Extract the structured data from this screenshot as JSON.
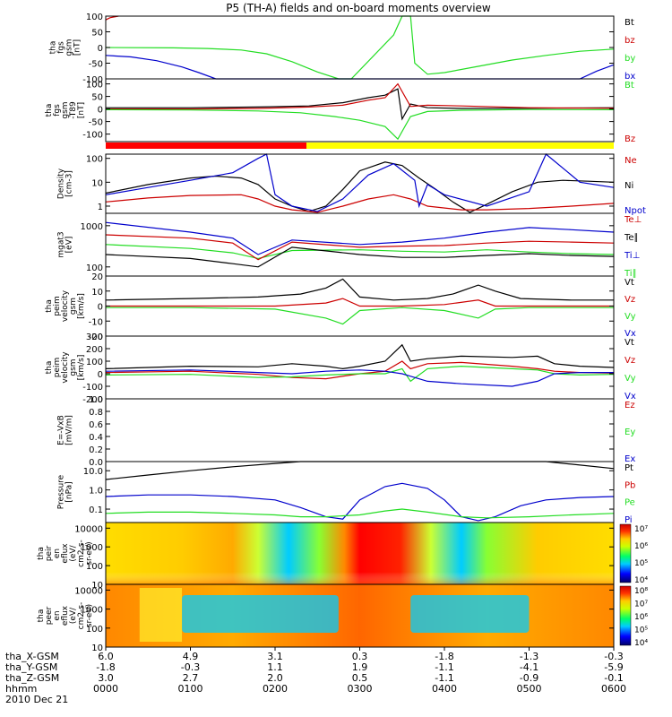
{
  "chart_data": {
    "type": "line",
    "title": "P5 (TH-A) fields and on-board moments overview",
    "x_range_hours": [
      0,
      6
    ],
    "ephemeris": {
      "rows": [
        {
          "label": "tha_X-GSM",
          "values": [
            "6.0",
            "4.9",
            "3.1",
            "0.3",
            "-1.8",
            "-1.3",
            "-0.3"
          ]
        },
        {
          "label": "tha_Y-GSM",
          "values": [
            "-1.8",
            "-0.3",
            "1.1",
            "1.9",
            "-1.1",
            "-4.1",
            "-5.9"
          ]
        },
        {
          "label": "tha_Z-GSM",
          "values": [
            "3.0",
            "2.7",
            "2.0",
            "0.5",
            "-1.1",
            "-0.9",
            "-0.1"
          ]
        },
        {
          "label": "hhmm",
          "values": [
            "0000",
            "0100",
            "0200",
            "0300",
            "0400",
            "0500",
            "0600"
          ]
        }
      ],
      "date": "2010 Dec 21"
    },
    "panels": [
      {
        "id": "fgs",
        "ylabel_lines": [
          "tha",
          "fgs",
          "gsm",
          "[nT]"
        ],
        "scale": "linear",
        "ylim": [
          -100,
          100
        ],
        "ticks": [
          "100",
          "50",
          "0",
          "-50",
          "-100"
        ],
        "legend": [
          {
            "name": "Bt",
            "color": "#000000"
          },
          {
            "name": "bz",
            "color": "#cc0000"
          },
          {
            "name": "by",
            "color": "#22dd22"
          },
          {
            "name": "bx",
            "color": "#0000cc"
          }
        ]
      },
      {
        "id": "fgs-t89",
        "ylabel_lines": [
          "tha",
          "fgs",
          "gsm",
          "-T89",
          "[nT]"
        ],
        "scale": "linear",
        "ylim": [
          -130,
          120
        ],
        "ticks": [
          "100",
          "50",
          "0",
          "-50",
          "-100"
        ],
        "legend": [
          {
            "name": "Bt",
            "color": "#22dd22"
          },
          {
            "name": "Bz",
            "color": "#cc0000"
          }
        ]
      },
      {
        "id": "density",
        "ylabel_lines": [
          "Density",
          "[cm-3]"
        ],
        "scale": "log",
        "ylim": [
          0.5,
          150
        ],
        "ticks": [
          "100",
          "10",
          "1"
        ],
        "legend": [
          {
            "name": "Ne",
            "color": "#cc0000"
          },
          {
            "name": "Ni",
            "color": "#000000"
          },
          {
            "name": "Npot",
            "color": "#0000cc"
          }
        ]
      },
      {
        "id": "temp",
        "ylabel_lines": [
          "mgat3",
          "[eV]"
        ],
        "scale": "log",
        "ylim": [
          60,
          2000
        ],
        "ticks": [
          "1000",
          "100"
        ],
        "legend": [
          {
            "name": "Te⊥",
            "color": "#cc0000"
          },
          {
            "name": "Te∥",
            "color": "#000000"
          },
          {
            "name": "Ti⊥",
            "color": "#0000cc"
          },
          {
            "name": "Ti∥",
            "color": "#22dd22"
          }
        ]
      },
      {
        "id": "vel-e",
        "ylabel_lines": [
          "tha",
          "peim",
          "velocity",
          "gsm",
          "[km/s]"
        ],
        "scale": "linear",
        "ylim": [
          -20,
          20
        ],
        "ticks": [
          "20",
          "10",
          "0",
          "-10",
          "-20"
        ],
        "legend": [
          {
            "name": "Vt",
            "color": "#000000"
          },
          {
            "name": "Vz",
            "color": "#cc0000"
          },
          {
            "name": "Vy",
            "color": "#22dd22"
          },
          {
            "name": "Vx",
            "color": "#0000cc"
          }
        ]
      },
      {
        "id": "vel-i",
        "ylabel_lines": [
          "tha",
          "peim",
          "velocity",
          "gsm",
          "[km/s]"
        ],
        "scale": "linear",
        "ylim": [
          -200,
          300
        ],
        "ticks": [
          "300",
          "200",
          "100",
          "0",
          "-100",
          "-200"
        ],
        "legend": [
          {
            "name": "Vt",
            "color": "#000000"
          },
          {
            "name": "Vz",
            "color": "#cc0000"
          },
          {
            "name": "Vy",
            "color": "#22dd22"
          },
          {
            "name": "Vx",
            "color": "#0000cc"
          }
        ]
      },
      {
        "id": "efield",
        "ylabel_lines": [
          "E=-VxB",
          "[mV/m]"
        ],
        "scale": "linear",
        "ylim": [
          0,
          1
        ],
        "ticks": [
          "1.0",
          "0.8",
          "0.6",
          "0.4",
          "0.2",
          "0.0"
        ],
        "legend": [
          {
            "name": "Ez",
            "color": "#cc0000"
          },
          {
            "name": "Ey",
            "color": "#22dd22"
          },
          {
            "name": "Ex",
            "color": "#0000cc"
          }
        ]
      },
      {
        "id": "pressure",
        "ylabel_lines": [
          "Pressure",
          "[nPa]"
        ],
        "scale": "log",
        "ylim": [
          0.02,
          30
        ],
        "ticks": [
          "10.0",
          "1.0",
          "0.1"
        ],
        "legend": [
          {
            "name": "Pt",
            "color": "#000000"
          },
          {
            "name": "Pb",
            "color": "#cc0000"
          },
          {
            "name": "Pe",
            "color": "#22dd22"
          },
          {
            "name": "Pi",
            "color": "#0000cc"
          }
        ]
      },
      {
        "id": "ion-spec",
        "ylabel_lines": [
          "tha",
          "peir",
          "en",
          "eflux",
          "(eV/",
          "cm2-s-",
          "sr-eV)"
        ],
        "scale": "log",
        "ylim": [
          10,
          20000
        ],
        "ticks": [
          "10000",
          "1000",
          "100",
          "10"
        ],
        "colorbar_ticks": [
          "10⁷",
          "10⁶",
          "10⁵",
          "10⁴"
        ]
      },
      {
        "id": "elec-spec",
        "ylabel_lines": [
          "tha",
          "peer",
          "en",
          "eflux",
          "(eV/",
          "cm2-s-",
          "sr-eV)"
        ],
        "scale": "log",
        "ylim": [
          10,
          20000
        ],
        "ticks": [
          "10000",
          "1000",
          "100",
          "10"
        ],
        "colorbar_ticks": [
          "10⁸",
          "10⁷",
          "10⁶",
          "10⁵",
          "10⁴"
        ]
      }
    ],
    "series": [
      {
        "name": "bz",
        "panel": "fgs",
        "x": [
          0,
          0.05,
          0.15
        ],
        "y": [
          88,
          95,
          100
        ]
      },
      {
        "name": "by",
        "panel": "fgs",
        "x": [
          0,
          0.8,
          1.2,
          1.6,
          1.9,
          2.2,
          2.5,
          2.75,
          2.9,
          3.4,
          3.5,
          3.6,
          3.65,
          3.8,
          4.0,
          4.4,
          4.8,
          5.2,
          5.6,
          6.0
        ],
        "y": [
          0,
          -1,
          -3,
          -8,
          -20,
          -45,
          -78,
          -100,
          -100,
          40,
          100,
          100,
          -50,
          -85,
          -80,
          -60,
          -40,
          -25,
          -12,
          -5
        ]
      },
      {
        "name": "bx",
        "panel": "fgs",
        "x": [
          0,
          0.3,
          0.6,
          0.9,
          1.1,
          1.3,
          5.6,
          5.8,
          6.0
        ],
        "y": [
          -25,
          -30,
          -42,
          -62,
          -80,
          -100,
          -100,
          -75,
          -55
        ]
      },
      {
        "name": "Bt-diff",
        "panel": "fgs-t89",
        "x": [
          0,
          1.0,
          1.8,
          2.4,
          2.8,
          3.1,
          3.3,
          3.45,
          3.5,
          3.6,
          3.8,
          4.2,
          5.0,
          6.0
        ],
        "y": [
          5,
          5,
          8,
          12,
          25,
          45,
          55,
          80,
          -40,
          20,
          5,
          2,
          3,
          5
        ]
      },
      {
        "name": "Bz-diff",
        "panel": "fgs-t89",
        "x": [
          0,
          1.0,
          1.8,
          2.4,
          2.8,
          3.1,
          3.3,
          3.45,
          3.6,
          3.8,
          4.2,
          5.0,
          6.0
        ],
        "y": [
          0,
          0,
          2,
          8,
          15,
          35,
          45,
          100,
          10,
          15,
          12,
          5,
          3
        ]
      },
      {
        "name": "By-diff",
        "panel": "fgs-t89",
        "x": [
          0,
          1.0,
          1.8,
          2.3,
          2.7,
          3.0,
          3.3,
          3.45,
          3.6,
          3.8,
          4.2,
          5.0,
          6.0
        ],
        "y": [
          -3,
          -4,
          -8,
          -15,
          -30,
          -45,
          -70,
          -120,
          -30,
          -10,
          -5,
          -2,
          -3
        ]
      },
      {
        "name": "Ni",
        "panel": "density",
        "x": [
          0,
          0.5,
          1.0,
          1.3,
          1.6,
          1.8,
          2.0,
          2.2,
          2.4,
          2.6,
          2.8,
          3.0,
          3.3,
          3.5,
          3.7,
          3.9,
          4.1,
          4.3,
          4.5,
          4.8,
          5.1,
          5.4,
          5.7,
          6.0
        ],
        "y": [
          3.5,
          8,
          15,
          18,
          15,
          8,
          2,
          1,
          0.6,
          1,
          5,
          30,
          70,
          50,
          15,
          5,
          1.5,
          0.55,
          1.2,
          4,
          10,
          12,
          11,
          10
        ]
      },
      {
        "name": "Ne",
        "panel": "density",
        "x": [
          0,
          0.5,
          1.0,
          1.6,
          1.8,
          2.0,
          2.2,
          2.5,
          2.8,
          3.1,
          3.4,
          3.6,
          3.8,
          4.2,
          4.5,
          5.0,
          5.5,
          6.0
        ],
        "y": [
          1.5,
          2.2,
          2.8,
          3,
          2,
          1,
          0.7,
          0.55,
          1,
          2,
          3,
          2,
          1,
          0.7,
          0.7,
          0.8,
          1,
          1.3
        ]
      },
      {
        "name": "Npot",
        "panel": "density",
        "x": [
          0,
          0.5,
          1.0,
          1.5,
          1.8,
          1.9,
          2.0,
          2.2,
          2.5,
          2.8,
          3.1,
          3.4,
          3.65,
          3.7,
          3.8,
          4.0,
          4.5,
          5.0,
          5.2,
          5.6,
          6.0
        ],
        "y": [
          3,
          6,
          12,
          25,
          100,
          150,
          3,
          1,
          0.6,
          2,
          20,
          60,
          12,
          1,
          8,
          3,
          1,
          4,
          150,
          10,
          6
        ]
      },
      {
        "name": "Ti∥",
        "panel": "temp",
        "x": [
          0,
          1.0,
          1.5,
          1.8,
          2.2,
          3.0,
          3.5,
          4.0,
          4.5,
          5.0,
          5.5,
          6.0
        ],
        "y": [
          350,
          280,
          220,
          160,
          250,
          260,
          240,
          230,
          260,
          230,
          210,
          200
        ]
      },
      {
        "name": "Ti⊥",
        "panel": "temp",
        "x": [
          0,
          1.0,
          1.5,
          1.8,
          2.2,
          3.0,
          3.5,
          4.0,
          4.5,
          5.0,
          5.5,
          6.0
        ],
        "y": [
          1200,
          700,
          500,
          200,
          450,
          350,
          400,
          500,
          700,
          900,
          800,
          700
        ]
      },
      {
        "name": "Te⊥",
        "panel": "temp",
        "x": [
          0,
          1.0,
          1.5,
          1.8,
          2.2,
          3.0,
          3.5,
          4.0,
          4.5,
          5.0,
          5.5,
          6.0
        ],
        "y": [
          600,
          500,
          380,
          150,
          400,
          300,
          320,
          330,
          380,
          420,
          400,
          380
        ]
      },
      {
        "name": "Te∥",
        "panel": "temp",
        "x": [
          0,
          1.0,
          1.5,
          1.8,
          2.2,
          3.0,
          3.5,
          4.0,
          4.5,
          5.0,
          5.5,
          6.0
        ],
        "y": [
          200,
          160,
          120,
          100,
          300,
          200,
          170,
          170,
          190,
          210,
          190,
          180
        ]
      },
      {
        "name": "Vt-e",
        "panel": "vel-e",
        "x": [
          0,
          1.0,
          1.8,
          2.3,
          2.6,
          2.8,
          3.0,
          3.4,
          3.8,
          4.1,
          4.4,
          4.6,
          4.9,
          5.5,
          6.0
        ],
        "y": [
          4,
          5,
          6,
          8,
          12,
          18,
          6,
          4,
          5,
          8,
          14,
          10,
          5,
          4,
          4
        ]
      },
      {
        "name": "Vz-e",
        "panel": "vel-e",
        "x": [
          0,
          1.0,
          2.0,
          2.6,
          2.8,
          3.0,
          3.5,
          4.0,
          4.4,
          4.6,
          5.0,
          6.0
        ],
        "y": [
          0,
          0,
          0,
          2,
          5,
          0,
          0,
          1,
          4,
          0,
          0,
          0
        ]
      },
      {
        "name": "Vy-e",
        "panel": "vel-e",
        "x": [
          0,
          1.0,
          2.0,
          2.6,
          2.8,
          3.0,
          3.5,
          4.0,
          4.4,
          4.6,
          5.0,
          6.0
        ],
        "y": [
          -1,
          -1,
          -2,
          -8,
          -12,
          -3,
          -1,
          -3,
          -8,
          -2,
          -1,
          -1
        ]
      },
      {
        "name": "Vt-i",
        "panel": "vel-i",
        "x": [
          0,
          1.0,
          1.8,
          2.2,
          2.6,
          2.8,
          3.0,
          3.3,
          3.5,
          3.6,
          3.8,
          4.2,
          4.8,
          5.1,
          5.3,
          5.6,
          6.0
        ],
        "y": [
          40,
          60,
          55,
          80,
          60,
          40,
          60,
          100,
          230,
          100,
          120,
          140,
          130,
          140,
          80,
          60,
          50
        ]
      },
      {
        "name": "Vz-i",
        "panel": "vel-i",
        "x": [
          0,
          1.0,
          1.8,
          2.2,
          2.6,
          3.0,
          3.3,
          3.5,
          3.6,
          3.8,
          4.2,
          4.8,
          5.1,
          5.3,
          5.6,
          6.0
        ],
        "y": [
          10,
          20,
          -5,
          -30,
          -40,
          0,
          20,
          100,
          40,
          80,
          90,
          60,
          40,
          20,
          10,
          5
        ]
      },
      {
        "name": "Vy-i",
        "panel": "vel-i",
        "x": [
          0,
          1.0,
          1.8,
          2.2,
          2.6,
          3.0,
          3.3,
          3.5,
          3.6,
          3.8,
          4.2,
          4.8,
          5.1,
          5.3,
          5.6,
          6.0
        ],
        "y": [
          -10,
          -5,
          -30,
          -25,
          -10,
          0,
          0,
          40,
          -60,
          40,
          60,
          40,
          30,
          0,
          -10,
          -5
        ]
      },
      {
        "name": "Vx-i",
        "panel": "vel-i",
        "x": [
          0,
          1.0,
          1.8,
          2.2,
          2.6,
          3.0,
          3.3,
          3.5,
          3.6,
          3.8,
          4.2,
          4.8,
          5.1,
          5.3,
          5.6,
          6.0
        ],
        "y": [
          20,
          30,
          10,
          0,
          20,
          30,
          20,
          0,
          -20,
          -60,
          -80,
          -100,
          -60,
          0,
          10,
          10
        ]
      },
      {
        "name": "Pt",
        "panel": "pressure",
        "x": [
          0,
          0.5,
          1.0,
          1.5,
          2.0,
          2.3,
          5.2,
          5.5,
          6.0
        ],
        "y": [
          3.5,
          6,
          10,
          16,
          24,
          30,
          30,
          22,
          13
        ]
      },
      {
        "name": "Pi",
        "panel": "pressure",
        "x": [
          0,
          0.5,
          1.0,
          1.5,
          2.0,
          2.3,
          2.6,
          2.8,
          3.0,
          3.3,
          3.5,
          3.8,
          4.0,
          4.2,
          4.4,
          4.6,
          4.9,
          5.2,
          5.6,
          6.0
        ],
        "y": [
          0.45,
          0.55,
          0.55,
          0.45,
          0.3,
          0.12,
          0.04,
          0.03,
          0.3,
          1.5,
          2.2,
          1.2,
          0.3,
          0.04,
          0.025,
          0.04,
          0.15,
          0.3,
          0.4,
          0.45
        ]
      },
      {
        "name": "Pe",
        "panel": "pressure",
        "x": [
          0,
          0.5,
          1.0,
          1.5,
          2.0,
          2.3,
          2.6,
          3.0,
          3.3,
          3.5,
          3.8,
          4.2,
          4.5,
          5.0,
          5.5,
          6.0
        ],
        "y": [
          0.06,
          0.07,
          0.07,
          0.06,
          0.05,
          0.04,
          0.04,
          0.05,
          0.08,
          0.1,
          0.07,
          0.04,
          0.035,
          0.04,
          0.05,
          0.06
        ]
      }
    ]
  },
  "colors": {
    "black": "#000000",
    "red": "#cc0000",
    "green": "#22dd22",
    "blue": "#0000cc",
    "yellow": "#ffff00",
    "bar_red": "#ff0000"
  }
}
